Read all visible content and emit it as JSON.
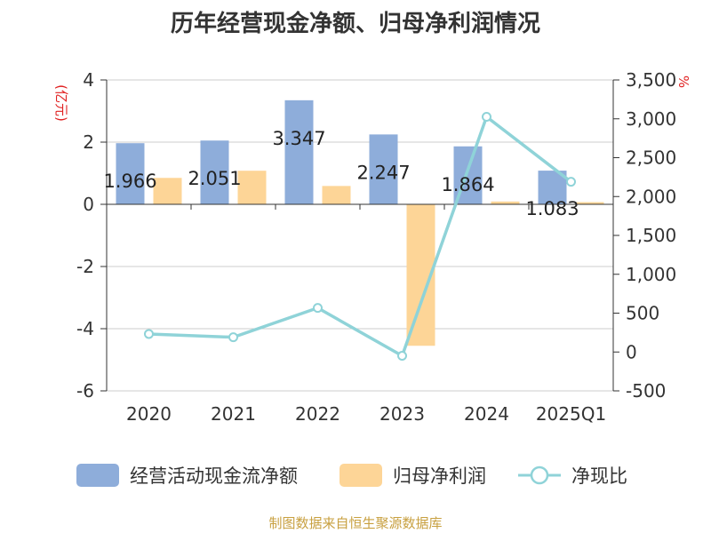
{
  "title": "历年经营现金净额、归母净利润情况",
  "source": "制图数据来自恒生聚源数据库",
  "left_unit": "(亿元)",
  "right_unit": "%",
  "colors": {
    "cash_flow": "#8eadda",
    "net_profit": "#fdd597",
    "ratio": "#8fd3d8",
    "unit_text": "#e02020",
    "source_text": "#c8a040"
  },
  "legend": [
    {
      "label": "经营活动现金流净额",
      "kind": "bar",
      "color": "#8eadda"
    },
    {
      "label": "归母净利润",
      "kind": "bar",
      "color": "#fdd597"
    },
    {
      "label": "净现比",
      "kind": "line",
      "color": "#8fd3d8"
    }
  ],
  "chart_data": {
    "type": "bar",
    "title": "历年经营现金净额、归母净利润情况",
    "categories": [
      "2020",
      "2021",
      "2022",
      "2023",
      "2024",
      "2025Q1"
    ],
    "y_left": {
      "label": "(亿元)",
      "min": -6,
      "max": 4,
      "ticks": [
        -6,
        -4,
        -2,
        0,
        2,
        4
      ]
    },
    "y_right": {
      "label": "%",
      "min": -500,
      "max": 3500,
      "ticks": [
        -500,
        0,
        500,
        1000,
        1500,
        2000,
        2500,
        3000,
        3500
      ],
      "tick_labels": [
        "-500",
        "0",
        "500",
        "1,000",
        "1,500",
        "2,000",
        "2,500",
        "3,000",
        "3,500"
      ]
    },
    "series": [
      {
        "name": "经营活动现金流净额",
        "type": "bar",
        "axis": "left",
        "values": [
          1.966,
          2.051,
          3.347,
          2.247,
          1.864,
          1.083
        ],
        "labels": [
          "1.966",
          "2.051",
          "3.347",
          "2.247",
          "1.864",
          "1.083"
        ]
      },
      {
        "name": "归母净利润",
        "type": "bar",
        "axis": "left",
        "values": [
          0.85,
          1.08,
          0.59,
          -4.55,
          0.09,
          0.07
        ]
      },
      {
        "name": "净现比",
        "type": "line",
        "axis": "right",
        "values": [
          232,
          190,
          567,
          -49,
          3026,
          2190
        ]
      }
    ],
    "grid": true,
    "legend_position": "bottom"
  }
}
